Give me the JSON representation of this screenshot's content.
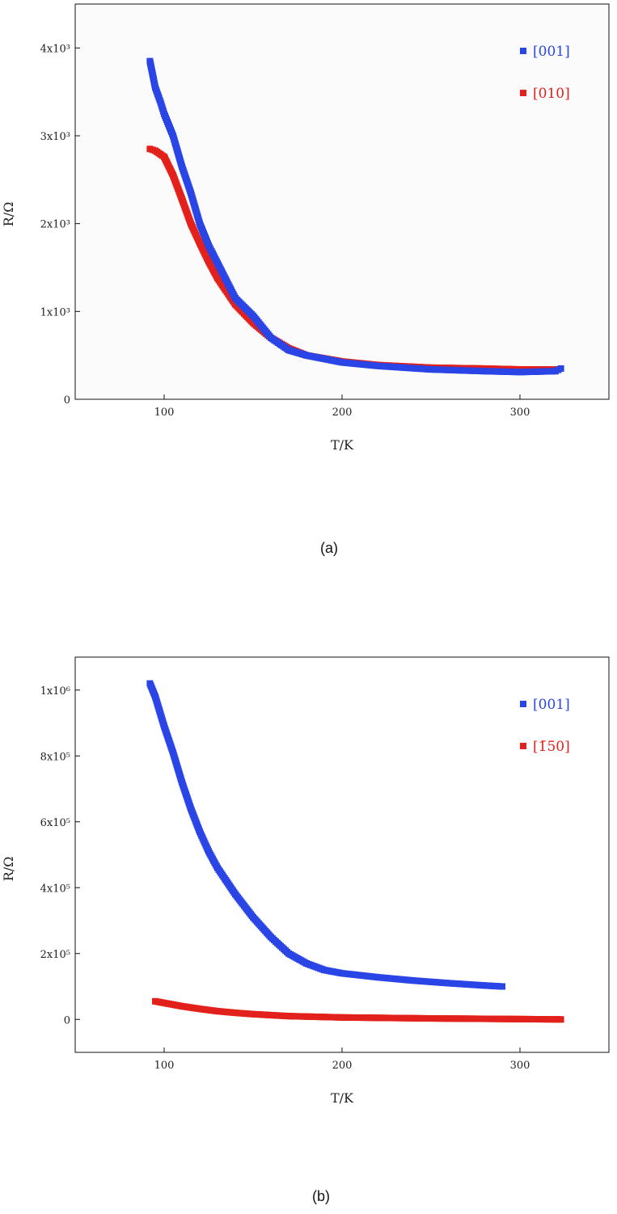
{
  "figure": {
    "caption_a": "(a)",
    "caption_b": "(b)"
  },
  "chart_data": [
    {
      "type": "scatter",
      "panel": "(a)",
      "xlabel": "T/K",
      "ylabel": "R/Ω",
      "xlim": [
        50,
        350
      ],
      "ylim": [
        0,
        4500
      ],
      "xticks": [
        100,
        200,
        300
      ],
      "xtick_labels": [
        "100",
        "200",
        "300"
      ],
      "yticks": [
        0,
        1000,
        2000,
        3000,
        4000
      ],
      "ytick_labels": [
        "0",
        "1x10³",
        "2x10³",
        "3x10³",
        "4x10³"
      ],
      "grid": false,
      "legend": "top-right",
      "series": [
        {
          "name": "[001]",
          "color": "#2a45e6",
          "x": [
            92,
            95,
            98,
            100,
            105,
            110,
            115,
            120,
            125,
            130,
            135,
            140,
            150,
            160,
            170,
            180,
            200,
            220,
            250,
            280,
            300,
            320,
            323
          ],
          "y": [
            3850,
            3550,
            3380,
            3250,
            3000,
            2650,
            2350,
            2000,
            1750,
            1550,
            1350,
            1150,
            950,
            700,
            560,
            500,
            420,
            380,
            340,
            320,
            310,
            320,
            350
          ]
        },
        {
          "name": "[010]",
          "color": "#e3211c",
          "x": [
            92,
            95,
            100,
            105,
            110,
            115,
            120,
            125,
            130,
            140,
            150,
            160,
            170,
            180,
            200,
            220,
            250,
            280,
            300,
            320
          ],
          "y": [
            2850,
            2830,
            2760,
            2550,
            2280,
            2000,
            1780,
            1570,
            1380,
            1080,
            870,
            700,
            580,
            500,
            430,
            390,
            360,
            350,
            340,
            340
          ]
        }
      ]
    },
    {
      "type": "scatter",
      "panel": "(b)",
      "xlabel": "T/K",
      "ylabel": "R/Ω",
      "xlim": [
        50,
        350
      ],
      "ylim": [
        -100000,
        1100000
      ],
      "xticks": [
        100,
        200,
        300
      ],
      "xtick_labels": [
        "100",
        "200",
        "300"
      ],
      "yticks": [
        0,
        200000,
        400000,
        600000,
        800000,
        1000000
      ],
      "ytick_labels": [
        "0",
        "2x10⁵",
        "4x10⁵",
        "6x10⁵",
        "8x10⁵",
        "1x10⁶"
      ],
      "grid": false,
      "legend": "top-right",
      "series": [
        {
          "name": "[001]",
          "color": "#2a45e6",
          "x": [
            92,
            95,
            100,
            105,
            110,
            115,
            120,
            125,
            130,
            140,
            150,
            160,
            170,
            180,
            190,
            200,
            220,
            240,
            260,
            280,
            290
          ],
          "y": [
            1020000,
            980000,
            890000,
            810000,
            720000,
            640000,
            570000,
            510000,
            460000,
            380000,
            310000,
            250000,
            200000,
            170000,
            150000,
            140000,
            128000,
            118000,
            110000,
            103000,
            100000
          ]
        },
        {
          "name": "[1̄50]",
          "color": "#e3211c",
          "x": [
            95,
            100,
            110,
            120,
            130,
            140,
            150,
            170,
            200,
            250,
            300,
            323
          ],
          "y": [
            55000,
            50000,
            40000,
            32000,
            25000,
            20000,
            16000,
            10000,
            6000,
            3000,
            1000,
            0
          ]
        }
      ]
    }
  ]
}
